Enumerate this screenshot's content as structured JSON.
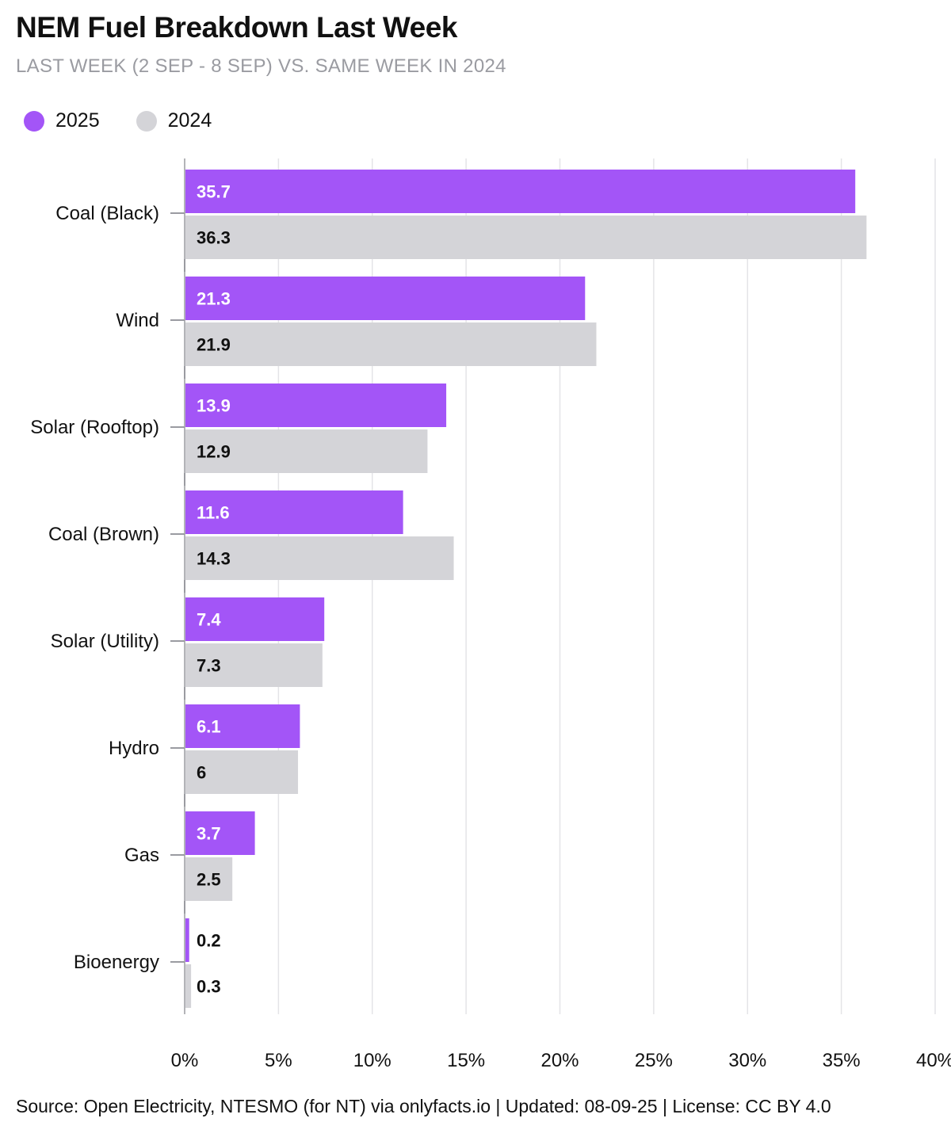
{
  "title": "NEM Fuel Breakdown Last Week",
  "subtitle": "LAST WEEK (2 SEP - 8 SEP) VS. SAME WEEK IN 2024",
  "source": "Source: Open Electricity, NTESMO (for NT) via onlyfacts.io | Updated: 08-09-25 | License: CC BY 4.0",
  "colors": {
    "series_2025": "#a355f7",
    "series_2024": "#d4d4d8",
    "grid": "#e4e4e7",
    "axis": "#9a9ba1"
  },
  "chart_data": {
    "type": "bar",
    "orientation": "horizontal",
    "categories": [
      "Coal (Black)",
      "Wind",
      "Solar (Rooftop)",
      "Coal (Brown)",
      "Solar (Utility)",
      "Hydro",
      "Gas",
      "Bioenergy"
    ],
    "series": [
      {
        "name": "2025",
        "values": [
          35.7,
          21.3,
          13.9,
          11.6,
          7.4,
          6.1,
          3.7,
          0.2
        ],
        "labels": [
          "35.7",
          "21.3",
          "13.9",
          "11.6",
          "7.4",
          "6.1",
          "3.7",
          "0.2"
        ]
      },
      {
        "name": "2024",
        "values": [
          36.3,
          21.9,
          12.9,
          14.3,
          7.3,
          6,
          2.5,
          0.3
        ],
        "labels": [
          "36.3",
          "21.9",
          "12.9",
          "14.3",
          "7.3",
          "6",
          "2.5",
          "0.3"
        ]
      }
    ],
    "xlim": [
      0,
      40
    ],
    "xticks": [
      0,
      5,
      10,
      15,
      20,
      25,
      30,
      35,
      40
    ],
    "xtick_labels": [
      "0%",
      "5%",
      "10%",
      "15%",
      "20%",
      "25%",
      "30%",
      "35%",
      "40%"
    ],
    "grid": true,
    "legend_position": "top-left"
  }
}
